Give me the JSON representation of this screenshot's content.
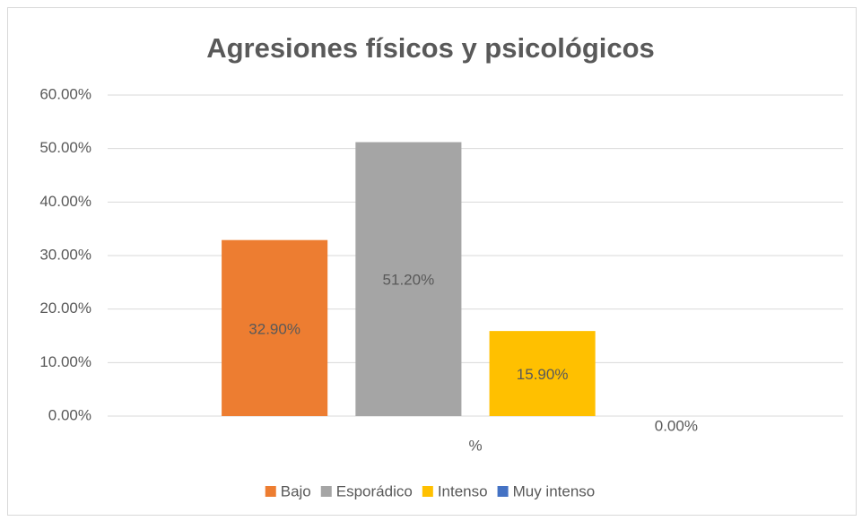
{
  "chart_data": {
    "type": "bar",
    "title": "Agresiones físicos y psicológicos",
    "categories": [
      "%"
    ],
    "series": [
      {
        "name": "Bajo",
        "color": "#ed7d31",
        "values": [
          32.9
        ],
        "value_labels": [
          "32.90%"
        ]
      },
      {
        "name": "Esporádico",
        "color": "#a5a5a5",
        "values": [
          51.2
        ],
        "value_labels": [
          "51.20%"
        ]
      },
      {
        "name": "Intenso",
        "color": "#ffc000",
        "values": [
          15.9
        ],
        "value_labels": [
          "15.90%"
        ]
      },
      {
        "name": "Muy intenso",
        "color": "#4472c4",
        "values": [
          0
        ],
        "value_labels": [
          "0.00%"
        ]
      }
    ],
    "ylim": [
      0,
      60
    ],
    "yticks": [
      {
        "value": 0,
        "label": "0.00%"
      },
      {
        "value": 10,
        "label": "10.00%"
      },
      {
        "value": 20,
        "label": "20.00%"
      },
      {
        "value": 30,
        "label": "30.00%"
      },
      {
        "value": 40,
        "label": "40.00%"
      },
      {
        "value": 50,
        "label": "50.00%"
      },
      {
        "value": 60,
        "label": "60.00%"
      }
    ],
    "grid": true,
    "legend": "bottom"
  }
}
